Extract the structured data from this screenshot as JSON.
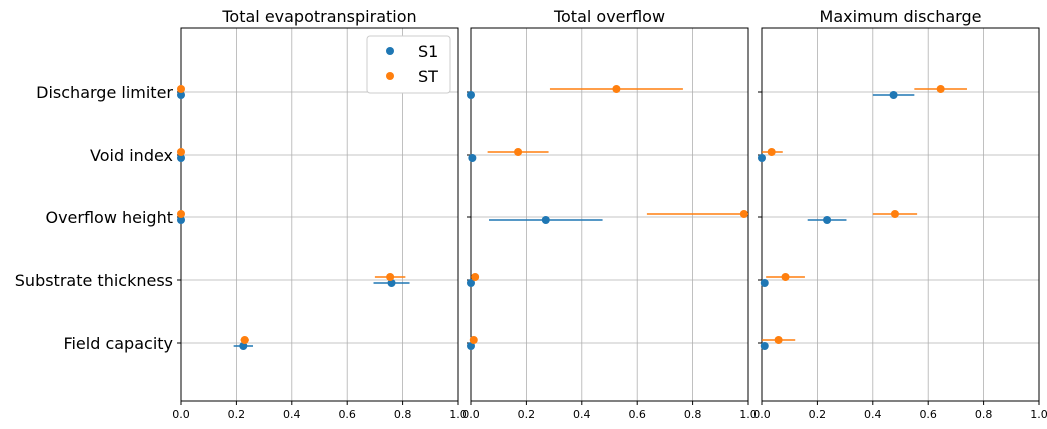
{
  "chart_data": {
    "type": "scatter",
    "categories": [
      "Discharge limiter",
      "Void index",
      "Overflow height",
      "Substrate thickness",
      "Field capacity"
    ],
    "xlim": [
      0,
      1.0
    ],
    "xticks": [
      "0.0",
      "0.2",
      "0.4",
      "0.6",
      "0.8",
      "1.0"
    ],
    "grid": true,
    "legend": {
      "placement": "top-right",
      "panel": 0,
      "entries": [
        "S1",
        "ST"
      ]
    },
    "series_colors": {
      "S1": "#1f77b4",
      "ST": "#ff7f0e"
    },
    "panels": [
      {
        "title": "Total evapotranspiration",
        "series": [
          {
            "name": "S1",
            "values": [
              0.0,
              0.0,
              0.0,
              0.76,
              0.225
            ],
            "errors": [
              0.0,
              0.0,
              0.0,
              0.065,
              0.035
            ]
          },
          {
            "name": "ST",
            "values": [
              0.0,
              0.0,
              0.0,
              0.755,
              0.23
            ],
            "errors": [
              0.0,
              0.0,
              0.0,
              0.055,
              0.015
            ]
          }
        ]
      },
      {
        "title": "Total overflow",
        "series": [
          {
            "name": "S1",
            "values": [
              0.0,
              0.005,
              0.27,
              0.0,
              0.0
            ],
            "errors": [
              0.0,
              0.0,
              0.205,
              0.0,
              0.0
            ]
          },
          {
            "name": "ST",
            "values": [
              0.525,
              0.17,
              0.985,
              0.015,
              0.01
            ],
            "errors": [
              0.24,
              0.11,
              0.35,
              0.0,
              0.0
            ]
          }
        ]
      },
      {
        "title": "Maximum discharge",
        "series": [
          {
            "name": "S1",
            "values": [
              0.475,
              0.0,
              0.235,
              0.01,
              0.01
            ],
            "errors": [
              0.075,
              0.0,
              0.07,
              0.0,
              0.0
            ]
          },
          {
            "name": "ST",
            "values": [
              0.645,
              0.035,
              0.48,
              0.085,
              0.06
            ],
            "errors": [
              0.095,
              0.04,
              0.08,
              0.07,
              0.06
            ]
          }
        ]
      }
    ]
  }
}
